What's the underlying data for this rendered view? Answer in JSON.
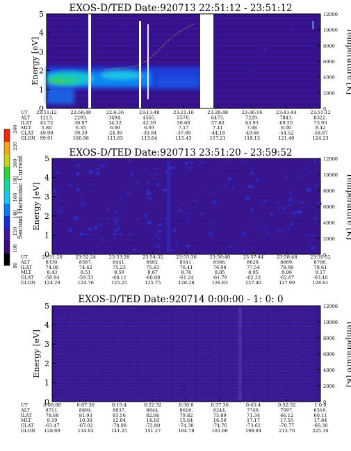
{
  "chart_data": [
    {
      "type": "heatmap",
      "title": "EXOS-D/TED   Date:920713  22:51:12 - 23:51:12",
      "ylabel": "Energy [eV]",
      "y2label": "Temperature [K]",
      "ylim": [
        0,
        5
      ],
      "y2lim": [
        0,
        12000
      ],
      "y_ticks": [
        "0",
        "1",
        "2",
        "3",
        "4",
        "5"
      ],
      "y2_ticks": [
        "0",
        "2000",
        "4000",
        "6000",
        "8000",
        "10000",
        "12000"
      ],
      "grid": false,
      "data_gaps_ut": [
        "22:58:48",
        "23:21:16",
        "23:28:48"
      ],
      "orbit_table": {
        "labels": [
          "UT",
          "ALT",
          "ILAT",
          "MLT",
          "GLAT",
          "GLON"
        ],
        "columns": [
          [
            "22:51:12",
            "1213.",
            "43.72",
            "5.80",
            "49.99",
            "99.91"
          ],
          [
            "22:58:48",
            "2293.",
            "30.97",
            "6.35",
            "39.39",
            "106.96"
          ],
          [
            "22:6:36",
            "3494.",
            "34.32",
            "6.69",
            "-24.39",
            "111.65"
          ],
          [
            "23:13:48",
            "4565.",
            "42.39",
            "6.93",
            "-30.94",
            "113.64"
          ],
          [
            "23:21:16",
            "5578.",
            "50.60",
            "7.17",
            "-37.89",
            "115.43"
          ],
          [
            "23:28:48",
            "6473.",
            "57.80",
            "7.41",
            "-44.18",
            "117.21"
          ],
          [
            "23:36:16",
            "7229.",
            "63.93",
            "7.68",
            "-49.66",
            "119.13"
          ],
          [
            "23:43:44",
            "7843.",
            "69.25",
            "8.00",
            "-54.52",
            "121.40"
          ],
          [
            "23:51:12",
            "8322.",
            "73.93",
            "8.42",
            "-58.87",
            "124.23"
          ]
        ]
      }
    },
    {
      "type": "heatmap",
      "title": "EXOS-D/TED   Date:920713  23:51:20 - 23:59:52",
      "ylabel": "Energy [eV]",
      "y2label": "Temperature [K]",
      "ylim": [
        0,
        5
      ],
      "y2lim": [
        0,
        12000
      ],
      "y_ticks": [
        "0",
        "1",
        "2",
        "3",
        "4",
        "5"
      ],
      "y2_ticks": [
        "0",
        "2000",
        "4000",
        "6000",
        "8000",
        "10000",
        "12000"
      ],
      "grid": false,
      "orbit_table": {
        "labels": [
          "UT",
          "ALT",
          "ILAT",
          "MLT",
          "GLAT",
          "GLON"
        ],
        "columns": [
          [
            "23:51:20",
            "8330.",
            "74.00",
            "8.43",
            "-58.94",
            "124.29"
          ],
          [
            "23:52:24",
            "8387.",
            "74.62",
            "8.51",
            "-59.53",
            "124.76"
          ],
          [
            "23:53:28",
            "8441.",
            "75.23",
            "8.59",
            "-60.11",
            "125.25"
          ],
          [
            "23:54:32",
            "8492.",
            "75.83",
            "8.67",
            "-60.68",
            "125.75"
          ],
          [
            "23:55:36",
            "8541.",
            "76.41",
            "8.76",
            "-61.24",
            "126.28"
          ],
          [
            "23:56:40",
            "8586.",
            "76.98",
            "8.85",
            "-61.79",
            "126.83"
          ],
          [
            "23:57:44",
            "8629.",
            "77.54",
            "8.95",
            "-62.33",
            "127.40"
          ],
          [
            "23:58:48",
            "8669.",
            "78.08",
            "9.06",
            "-62.87",
            "127.99"
          ],
          [
            "23:59:52",
            "8706.",
            "78.61",
            "9.17",
            "-63.40",
            "128.61"
          ]
        ]
      }
    },
    {
      "type": "heatmap",
      "title": "EXOS-D/TED   Date:920714  0:00:00 - 1: 0: 0",
      "ylabel": "Energy [eV]",
      "y2label": "Temperature [K]",
      "ylim": [
        0,
        5
      ],
      "y2lim": [
        0,
        12000
      ],
      "y_ticks": [
        "0",
        "1",
        "2",
        "3",
        "4",
        "5"
      ],
      "y2_ticks": [
        "0",
        "2000",
        "4000",
        "6000",
        "8000",
        "10000",
        "12000"
      ],
      "grid": false,
      "orbit_table": {
        "labels": [
          "UT",
          "ALT",
          "ILAT",
          "MLT",
          "GLAT",
          "GLON"
        ],
        "columns": [
          [
            "0:00:00",
            "8711.",
            "78.68",
            "9.19",
            "-63.47",
            "128.69"
          ],
          [
            "0:07:36",
            "8894.",
            "81.93",
            "10.30",
            "-67.02",
            "134.02"
          ],
          [
            "0:15:4",
            "8937.",
            "83.56",
            "12.04",
            "-70.08",
            "141.25"
          ],
          [
            "0:22:32",
            "8844.",
            "82.66",
            "14.10",
            "-72.80",
            "151.27"
          ],
          [
            "0:30:0",
            "8616.",
            "79.82",
            "15.64",
            "-74.30",
            "164.78"
          ],
          [
            "0:37:36",
            "8244.",
            "75.89",
            "16.59",
            "-74.76",
            "181.66"
          ],
          [
            "0:45:4",
            "7740.",
            "71.34",
            "17.17",
            "-73.62",
            "198.84"
          ],
          [
            "0:52:32",
            "7097.",
            "66.12",
            "17.55",
            "-70.77",
            "213.70"
          ],
          [
            "1:0:0",
            "6316.",
            "60.11",
            "17.84",
            "-66.30",
            "225.10"
          ]
        ]
      }
    }
  ],
  "colorbar": {
    "label": "Second Harmonic Current",
    "ticks": [
      "80",
      "100",
      "120",
      "140",
      "160",
      "180",
      "200",
      "220",
      "240"
    ],
    "colors": [
      "#000000",
      "#3b0a78",
      "#3f1596",
      "#1a2bd6",
      "#0b7bf0",
      "#18c8e8",
      "#19d7a2",
      "#2ed13a",
      "#c8d21e",
      "#f0a81c",
      "#ee2a13"
    ]
  }
}
